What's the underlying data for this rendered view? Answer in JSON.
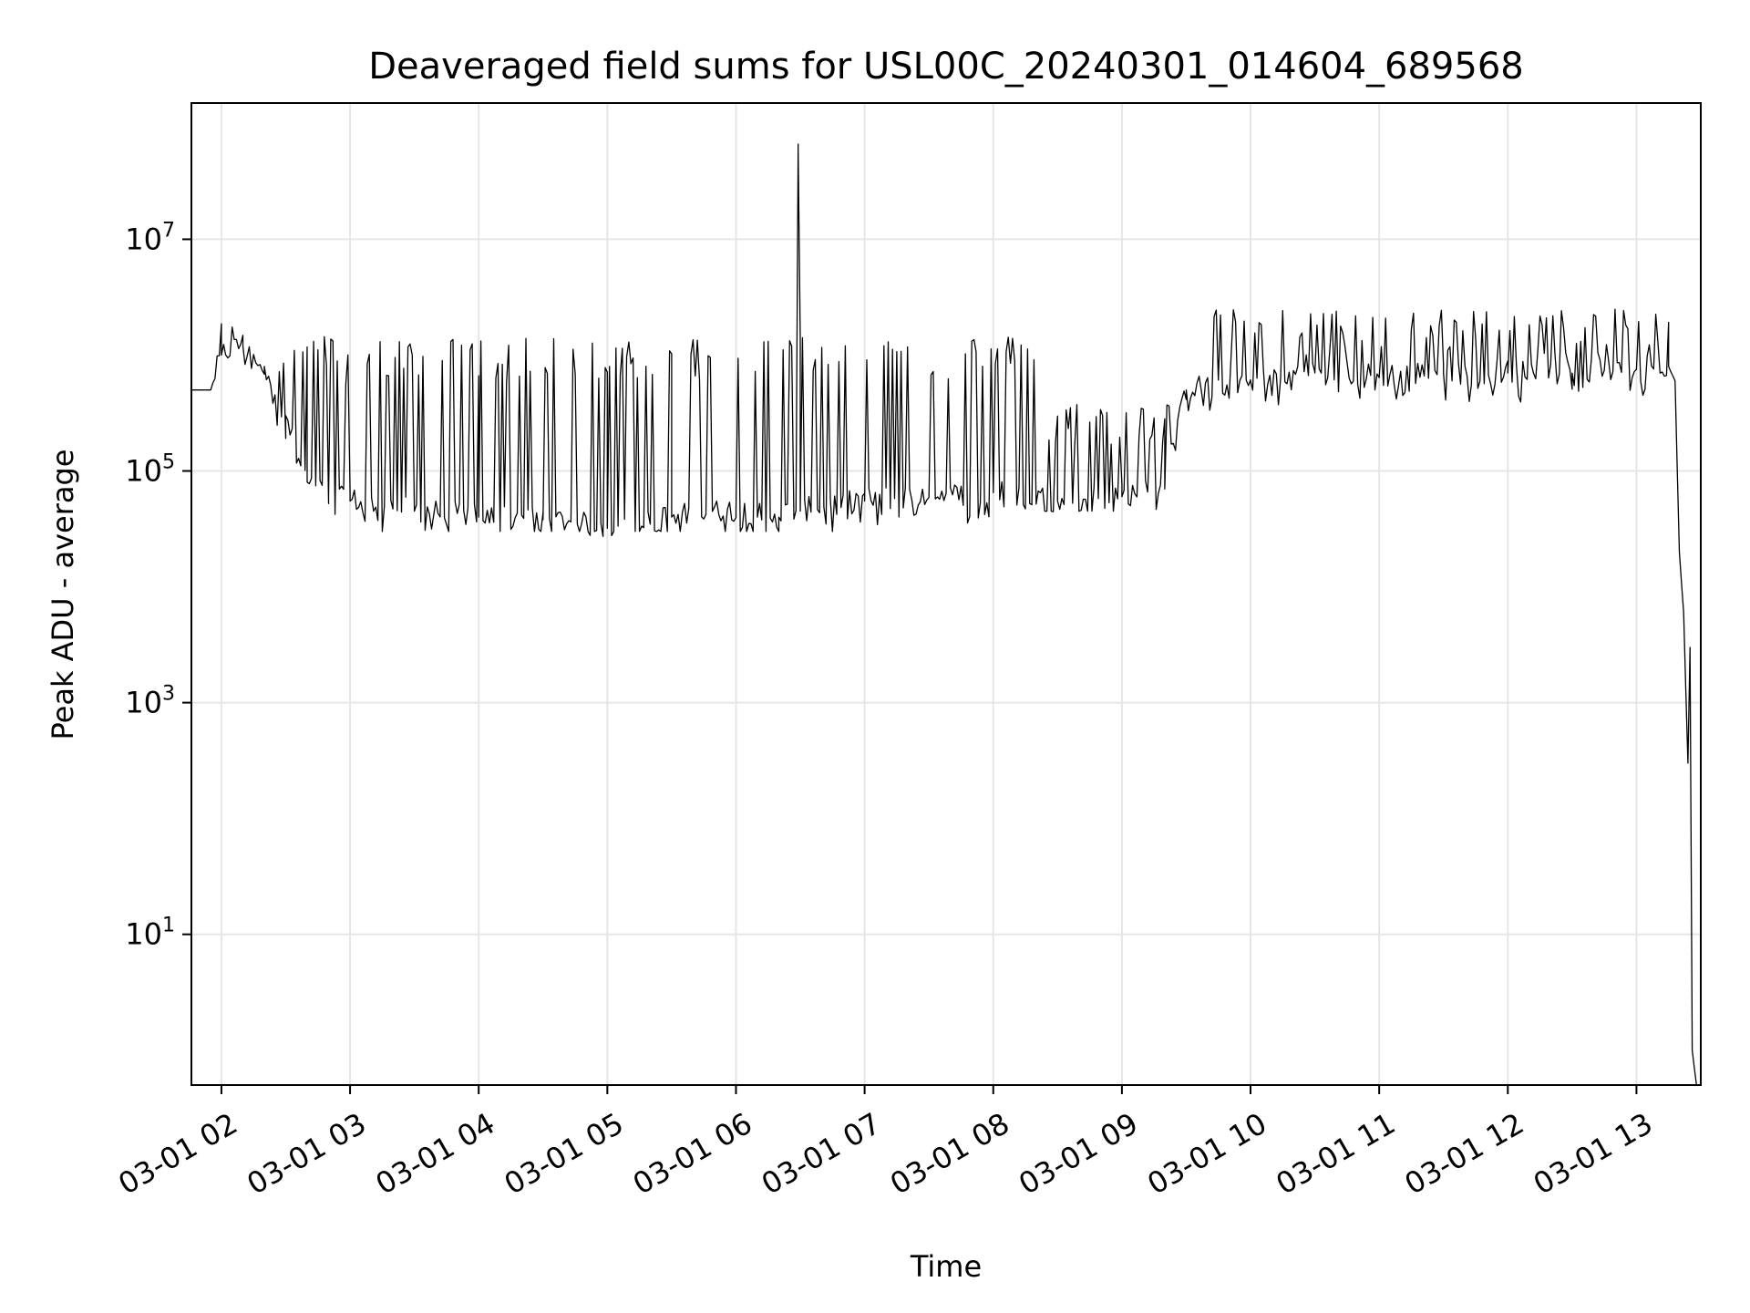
{
  "chart_data": {
    "type": "line",
    "title": "Deaveraged field sums for USL00C_20240301_014604_689568",
    "xlabel": "Time",
    "ylabel": "Peak ADU - average",
    "xscale": "time",
    "yscale": "log",
    "xlim": [
      "2024-03-01T01:46",
      "2024-03-01T13:30"
    ],
    "ylim": [
      0.5,
      150000000
    ],
    "grid": true,
    "x_tick_labels": [
      "03-01 02",
      "03-01 03",
      "03-01 04",
      "03-01 05",
      "03-01 06",
      "03-01 07",
      "03-01 08",
      "03-01 09",
      "03-01 10",
      "03-01 11",
      "03-01 12",
      "03-01 13"
    ],
    "y_ticks": [
      {
        "value": 10,
        "base": "10",
        "exp": "1"
      },
      {
        "value": 1000,
        "base": "10",
        "exp": "3"
      },
      {
        "value": 100000,
        "base": "10",
        "exp": "5"
      },
      {
        "value": 10000000,
        "base": "10",
        "exp": "7"
      }
    ],
    "series": [
      {
        "color": "#000000",
        "x": [
          "2024-03-01T01:46",
          "2024-03-01T01:55",
          "2024-03-01T02:00",
          "2024-03-01T02:10",
          "2024-03-01T02:20",
          "2024-03-01T02:30",
          "2024-03-01T02:40",
          "2024-03-01T02:50",
          "2024-03-01T03:00",
          "2024-03-01T03:30",
          "2024-03-01T04:00",
          "2024-03-01T04:30",
          "2024-03-01T05:00",
          "2024-03-01T05:30",
          "2024-03-01T06:00",
          "2024-03-01T06:20",
          "2024-03-01T06:28",
          "2024-03-01T06:29",
          "2024-03-01T06:30",
          "2024-03-01T07:00",
          "2024-03-01T07:30",
          "2024-03-01T08:00",
          "2024-03-01T08:30",
          "2024-03-01T09:00",
          "2024-03-01T09:20",
          "2024-03-01T09:30",
          "2024-03-01T10:00",
          "2024-03-01T10:30",
          "2024-03-01T11:00",
          "2024-03-01T11:30",
          "2024-03-01T12:00",
          "2024-03-01T12:30",
          "2024-03-01T13:00",
          "2024-03-01T13:15",
          "2024-03-01T13:18",
          "2024-03-01T13:20",
          "2024-03-01T13:22",
          "2024-03-01T13:24",
          "2024-03-01T13:25",
          "2024-03-01T13:26",
          "2024-03-01T13:28"
        ],
        "values": [
          500000,
          500000,
          1000000,
          1200000,
          800000,
          300000,
          80000,
          60000,
          55000,
          45000,
          40000,
          38000,
          32000,
          40000,
          45000,
          40000,
          45000,
          60000000,
          45000,
          55000,
          60000,
          65000,
          55000,
          60000,
          70000,
          500000,
          600000,
          700000,
          650000,
          700000,
          700000,
          700000,
          750000,
          800000,
          600000,
          20000,
          6000,
          300,
          3000,
          1,
          0.5
        ],
        "spike_band": [
          {
            "from": "2024-03-01T01:57",
            "to": "2024-03-01T02:20",
            "low": 600000,
            "high": 2000000
          },
          {
            "from": "2024-03-01T02:20",
            "to": "2024-03-01T02:55",
            "low": 40000,
            "high": 1500000
          },
          {
            "from": "2024-03-01T02:55",
            "to": "2024-03-01T05:10",
            "low": 30000,
            "high": 1400000
          },
          {
            "from": "2024-03-01T05:10",
            "to": "2024-03-01T08:20",
            "low": 30000,
            "high": 1500000
          },
          {
            "from": "2024-03-01T08:20",
            "to": "2024-03-01T09:25",
            "low": 45000,
            "high": 400000
          },
          {
            "from": "2024-03-01T09:25",
            "to": "2024-03-01T13:17",
            "low": 150000,
            "high": 2500000
          }
        ]
      }
    ]
  }
}
